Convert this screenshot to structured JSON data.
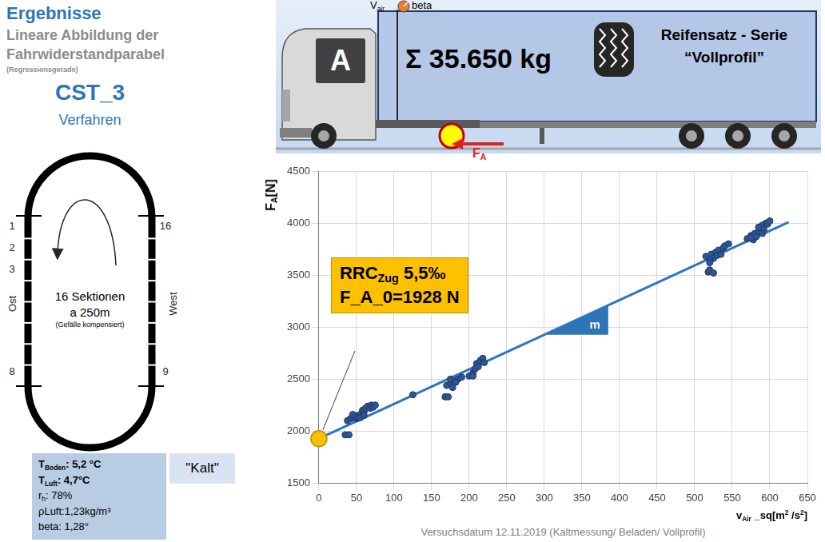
{
  "header": {
    "title": "Ergebnisse",
    "subtitle": "Lineare Abbildung der Fahrwiderstandparabel",
    "note": "(Regressionsgerade)",
    "method": "CST_3",
    "method_label": "Verfahren"
  },
  "track": {
    "section_numbers_left": [
      "1",
      "2",
      "3",
      "8"
    ],
    "section_numbers_right": [
      "16",
      "9"
    ],
    "east": "Ost",
    "west": "West",
    "sections_label": "16 Sektionen",
    "length_label": "a 250m",
    "note": "(Gefälle kompensiert)"
  },
  "conditions": {
    "lines": [
      [
        "T",
        {
          "sub": "Boden"
        },
        ": 5,2 °C"
      ],
      [
        "T",
        {
          "sub": "Luft"
        },
        ": 4,7°C"
      ],
      [
        "r",
        {
          "sub": "h"
        },
        ": 78%"
      ],
      [
        "ρLuft:1,23kg/m³"
      ],
      [
        "beta: 1,28°"
      ]
    ],
    "tag": "\"Kalt\""
  },
  "vehicle": {
    "letter": "A",
    "mass": "Σ 35.650 kg",
    "tires": [
      "Reifensatz - Serie",
      "“Vollprofil”"
    ],
    "wind_speed": [
      "V",
      {
        "sub": "air"
      }
    ],
    "wind_angle": "beta",
    "force": [
      "F",
      {
        "sub": "A"
      }
    ]
  },
  "chart_data": {
    "type": "scatter",
    "x_label": [
      "v",
      {
        "sub": "Air"
      },
      " _sq[m",
      {
        "sup": "2"
      },
      " /s",
      {
        "sup": "2"
      },
      "]"
    ],
    "y_label": [
      "F",
      {
        "sub": "A"
      },
      "[N]"
    ],
    "xlim": [
      0,
      650
    ],
    "xticks": [
      0,
      50,
      100,
      150,
      200,
      250,
      300,
      350,
      400,
      450,
      500,
      550,
      600,
      650
    ],
    "ylim": [
      1500,
      4500
    ],
    "yticks": [
      1500,
      2000,
      2500,
      3000,
      3500,
      4000,
      4500
    ],
    "grid": true,
    "series": [
      {
        "type": "scatter",
        "color": "#2f5597",
        "marker": "circle",
        "x": [
          35,
          40,
          38,
          42,
          45,
          48,
          50,
          52,
          55,
          58,
          60,
          62,
          65,
          68,
          70,
          72,
          75,
          45,
          55,
          60,
          125,
          168,
          172,
          170,
          175,
          178,
          180,
          185,
          190,
          175,
          200,
          205,
          208,
          210,
          212,
          215,
          218,
          220,
          205,
          182,
          515,
          518,
          520,
          522,
          525,
          528,
          530,
          532,
          535,
          538,
          540,
          520,
          545,
          570,
          575,
          578,
          580,
          582,
          585,
          588,
          590,
          592,
          595,
          597,
          600,
          585,
          590,
          575,
          520,
          525
        ],
        "y": [
          1965,
          1965,
          2100,
          2120,
          2140,
          2150,
          2120,
          2130,
          2160,
          2200,
          2180,
          2220,
          2240,
          2220,
          2250,
          2230,
          2250,
          2160,
          2130,
          2150,
          2350,
          2330,
          2330,
          2440,
          2460,
          2420,
          2480,
          2500,
          2520,
          2500,
          2530,
          2560,
          2600,
          2650,
          2620,
          2680,
          2700,
          2660,
          2530,
          2470,
          3680,
          3530,
          3550,
          3700,
          3660,
          3720,
          3690,
          3740,
          3700,
          3760,
          3780,
          3650,
          3800,
          3850,
          3880,
          3840,
          3900,
          3870,
          3920,
          3950,
          3980,
          3940,
          4000,
          3990,
          4020,
          3960,
          3900,
          3860,
          3620,
          3520
        ]
      },
      {
        "type": "line",
        "color": "#2e75c6",
        "line_style": "solid",
        "x": [
          0,
          625
        ],
        "y": [
          1928,
          4010
        ]
      }
    ],
    "annotations": {
      "box": {
        "lines": [
          [
            "RRC",
            {
              "sub": "Zug"
            },
            " 5,5‰"
          ],
          [
            "F_A_0=1928 N"
          ]
        ],
        "color": "#ffc000"
      },
      "intercept": {
        "x": 0,
        "y": 1928,
        "color": "#ffc000"
      },
      "slope_triangle": {
        "label": "m",
        "x": [
          300,
          385,
          385
        ],
        "y": [
          2927,
          3210,
          2927
        ],
        "color": "#2e75b6"
      }
    },
    "footer": "Versuchsdatum 12.11.2019 (Kaltmessung/ Beladen/ Vollprofil)"
  }
}
